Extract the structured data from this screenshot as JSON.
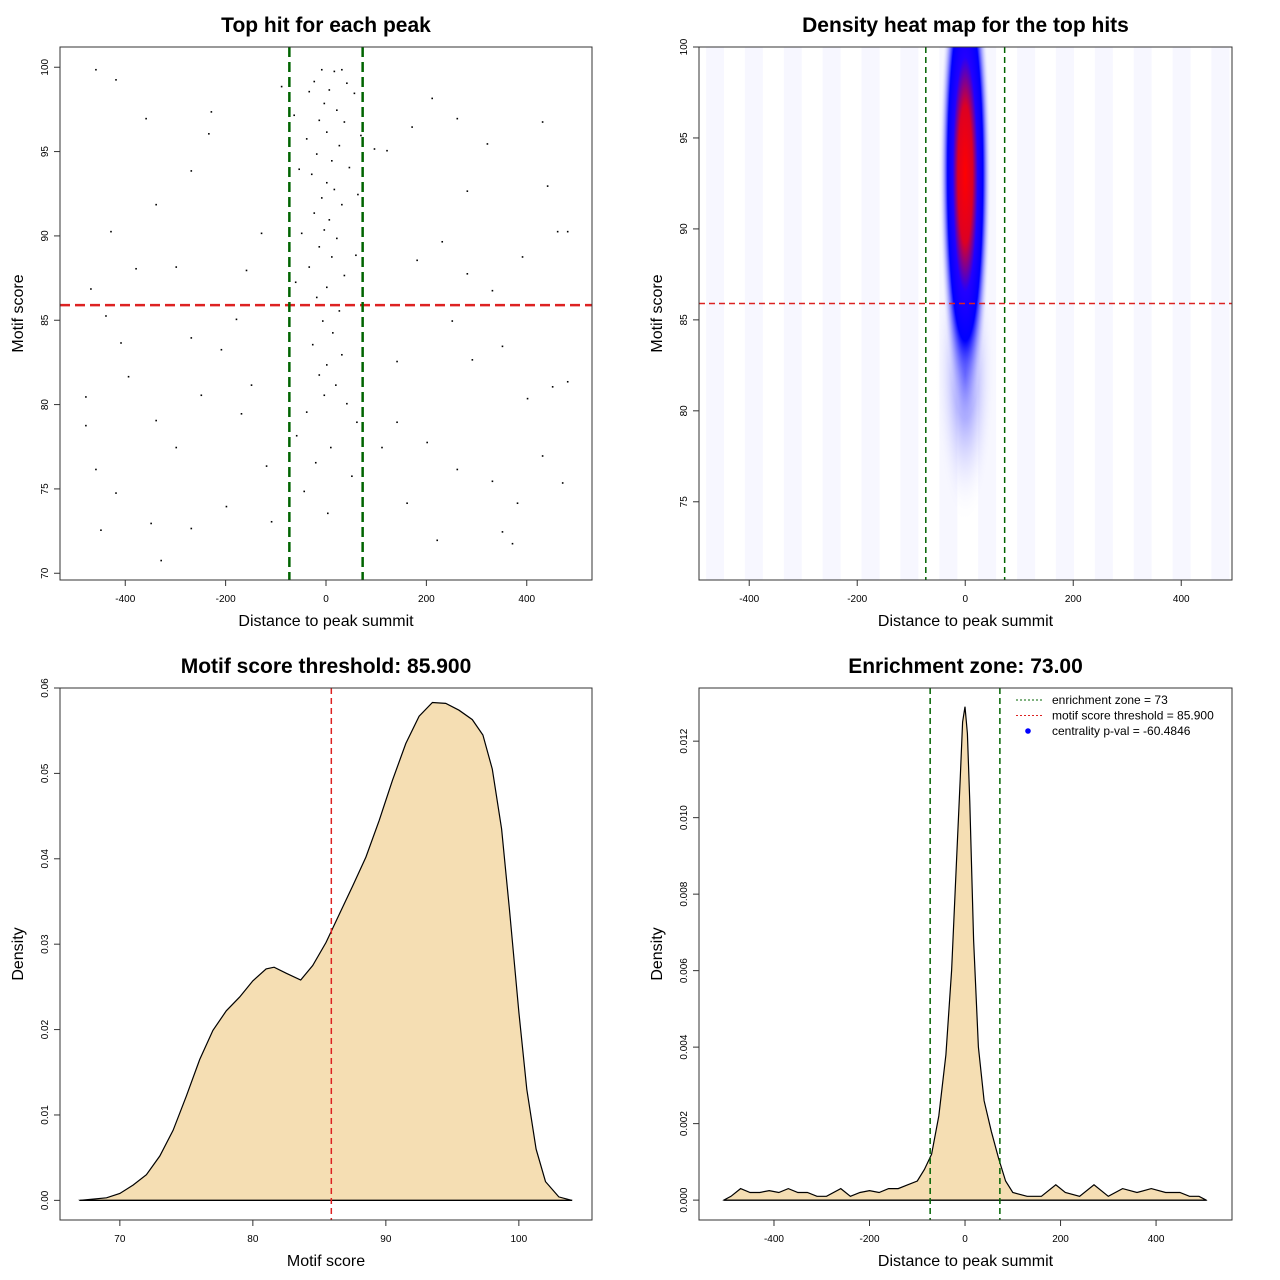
{
  "chart_data": [
    {
      "type": "scatter",
      "title": "Top hit for each peak",
      "xlabel": "Distance to peak summit",
      "ylabel": "Motif score",
      "xlim": [
        -530,
        530
      ],
      "ylim": [
        69.6,
        101.2
      ],
      "xticks": [
        -400,
        -200,
        0,
        200,
        400
      ],
      "yticks": [
        70,
        75,
        80,
        85,
        90,
        95,
        100
      ],
      "hlines": [
        {
          "y": 85.9,
          "color": "#dd2222",
          "label": "motif score threshold"
        }
      ],
      "vlines": [
        {
          "x": -73,
          "color": "#006400"
        },
        {
          "x": 73,
          "color": "#006400"
        }
      ],
      "points": [
        [
          -10,
          99.9
        ],
        [
          15,
          99.8
        ],
        [
          30,
          99.9
        ],
        [
          -25,
          99.2
        ],
        [
          40,
          99.1
        ],
        [
          5,
          98.7
        ],
        [
          -35,
          98.6
        ],
        [
          55,
          98.5
        ],
        [
          -5,
          97.9
        ],
        [
          20,
          97.5
        ],
        [
          -15,
          96.9
        ],
        [
          35,
          96.8
        ],
        [
          0,
          96.2
        ],
        [
          -40,
          95.8
        ],
        [
          25,
          95.4
        ],
        [
          -20,
          94.9
        ],
        [
          10,
          94.5
        ],
        [
          45,
          94.1
        ],
        [
          -30,
          93.7
        ],
        [
          0,
          93.2
        ],
        [
          15,
          92.8
        ],
        [
          -10,
          92.3
        ],
        [
          30,
          91.9
        ],
        [
          -25,
          91.4
        ],
        [
          5,
          91.0
        ],
        [
          -5,
          90.4
        ],
        [
          20,
          89.9
        ],
        [
          -15,
          89.4
        ],
        [
          10,
          88.8
        ],
        [
          -35,
          88.2
        ],
        [
          35,
          87.7
        ],
        [
          0,
          87.0
        ],
        [
          -20,
          86.4
        ],
        [
          25,
          85.6
        ],
        [
          -8,
          85.0
        ],
        [
          12,
          84.3
        ],
        [
          -28,
          83.6
        ],
        [
          30,
          83.0
        ],
        [
          0,
          82.4
        ],
        [
          -15,
          81.8
        ],
        [
          18,
          81.2
        ],
        [
          -5,
          80.6
        ],
        [
          40,
          80.1
        ],
        [
          -40,
          79.6
        ],
        [
          60,
          79.0
        ],
        [
          -60,
          78.2
        ],
        [
          8,
          77.5
        ],
        [
          -22,
          76.6
        ],
        [
          50,
          75.8
        ],
        [
          -45,
          74.9
        ],
        [
          2,
          73.6
        ],
        [
          -65,
          97.2
        ],
        [
          68,
          96.0
        ],
        [
          -55,
          94.0
        ],
        [
          62,
          92.5
        ],
        [
          -50,
          90.2
        ],
        [
          58,
          88.9
        ],
        [
          -62,
          87.3
        ],
        [
          -90,
          98.9
        ],
        [
          95,
          95.2
        ],
        [
          -460,
          99.9
        ],
        [
          -420,
          99.3
        ],
        [
          -360,
          97.0
        ],
        [
          -230,
          97.4
        ],
        [
          -235,
          96.1
        ],
        [
          -270,
          93.9
        ],
        [
          -340,
          91.9
        ],
        [
          -430,
          90.3
        ],
        [
          -380,
          88.1
        ],
        [
          -300,
          88.2
        ],
        [
          -470,
          86.9
        ],
        [
          -440,
          85.3
        ],
        [
          -410,
          83.7
        ],
        [
          -395,
          81.7
        ],
        [
          -480,
          80.5
        ],
        [
          -340,
          79.1
        ],
        [
          -300,
          77.5
        ],
        [
          -460,
          76.2
        ],
        [
          -420,
          74.8
        ],
        [
          -350,
          73.0
        ],
        [
          -330,
          70.8
        ],
        [
          -270,
          72.7
        ],
        [
          -200,
          74.0
        ],
        [
          -170,
          79.5
        ],
        [
          -150,
          81.2
        ],
        [
          -210,
          83.3
        ],
        [
          -180,
          85.1
        ],
        [
          -160,
          88.0
        ],
        [
          -130,
          90.2
        ],
        [
          -120,
          76.4
        ],
        [
          -110,
          73.1
        ],
        [
          -250,
          80.6
        ],
        [
          -270,
          84.0
        ],
        [
          -450,
          72.6
        ],
        [
          -480,
          78.8
        ],
        [
          120,
          95.1
        ],
        [
          170,
          96.5
        ],
        [
          210,
          98.2
        ],
        [
          260,
          97.0
        ],
        [
          320,
          95.5
        ],
        [
          430,
          96.8
        ],
        [
          440,
          93.0
        ],
        [
          280,
          92.7
        ],
        [
          180,
          88.6
        ],
        [
          230,
          89.7
        ],
        [
          280,
          87.8
        ],
        [
          330,
          86.8
        ],
        [
          390,
          88.8
        ],
        [
          460,
          90.3
        ],
        [
          480,
          90.3
        ],
        [
          250,
          85.0
        ],
        [
          290,
          82.7
        ],
        [
          350,
          83.5
        ],
        [
          400,
          80.4
        ],
        [
          450,
          81.1
        ],
        [
          480,
          81.4
        ],
        [
          140,
          79.0
        ],
        [
          200,
          77.8
        ],
        [
          260,
          76.2
        ],
        [
          330,
          75.5
        ],
        [
          380,
          74.2
        ],
        [
          430,
          77.0
        ],
        [
          470,
          75.4
        ],
        [
          350,
          72.5
        ],
        [
          370,
          71.8
        ],
        [
          160,
          74.2
        ],
        [
          220,
          72.0
        ],
        [
          110,
          77.5
        ],
        [
          140,
          82.6
        ]
      ]
    },
    {
      "type": "heatmap",
      "title": "Density heat map for the top hits",
      "xlabel": "Distance to peak summit",
      "ylabel": "Motif score",
      "xlim": [
        -493,
        494
      ],
      "ylim": [
        70.7,
        100
      ],
      "xticks": [
        -400,
        -200,
        0,
        200,
        400
      ],
      "yticks": [
        75,
        80,
        85,
        90,
        95,
        100
      ],
      "hotspot": {
        "x": 0,
        "y": 93,
        "note": "density max centered at x=0, motif score ~93"
      },
      "colors": {
        "low": "#ffffff",
        "mid": "#0000ff",
        "high": "#ff0000"
      },
      "hlines": [
        {
          "y": 85.9,
          "color": "#dd2222"
        }
      ],
      "vlines": [
        {
          "x": -73,
          "color": "#006400"
        },
        {
          "x": 73,
          "color": "#006400"
        }
      ]
    },
    {
      "type": "area",
      "title": "Motif score threshold: 85.900",
      "xlabel": "Motif score",
      "ylabel": "Density",
      "xlim": [
        65.5,
        105.5
      ],
      "ylim": [
        -0.0023,
        0.06
      ],
      "xticks": [
        70,
        80,
        90,
        100
      ],
      "yticks": [
        0.0,
        0.01,
        0.02,
        0.03,
        0.04,
        0.05,
        0.06
      ],
      "ytick_labels": [
        "0.00",
        "0.01",
        "0.02",
        "0.03",
        "0.04",
        "0.05",
        "0.06"
      ],
      "fill": "#f5deb3",
      "x": [
        67,
        69,
        70,
        71,
        72,
        73,
        74,
        75,
        76,
        77,
        78,
        79,
        80,
        81,
        81.6,
        82.5,
        83.6,
        84.5,
        85.5,
        86.5,
        87.5,
        88.5,
        89.5,
        90.5,
        91.5,
        92.5,
        93.5,
        94.5,
        95.5,
        96.5,
        97.3,
        98,
        98.7,
        99.3,
        100,
        100.6,
        101.3,
        102,
        103,
        104
      ],
      "y": [
        0,
        0.0003,
        0.0008,
        0.0018,
        0.003,
        0.0052,
        0.0082,
        0.0122,
        0.0165,
        0.0199,
        0.0222,
        0.0238,
        0.0257,
        0.0271,
        0.0273,
        0.0266,
        0.0258,
        0.0275,
        0.0302,
        0.0335,
        0.0368,
        0.0402,
        0.0445,
        0.0492,
        0.0535,
        0.0567,
        0.0583,
        0.0582,
        0.0574,
        0.0563,
        0.0545,
        0.0505,
        0.0435,
        0.034,
        0.022,
        0.013,
        0.006,
        0.0022,
        0.0004,
        0
      ],
      "vlines": [
        {
          "x": 85.9,
          "color": "#dd2222"
        }
      ]
    },
    {
      "type": "area",
      "title": "Enrichment zone: 73.00",
      "xlabel": "Distance to peak summit",
      "ylabel": "Density",
      "xlim": [
        -557,
        559
      ],
      "ylim": [
        -0.00052,
        0.01339
      ],
      "xticks": [
        -400,
        -200,
        0,
        200,
        400
      ],
      "yticks": [
        0,
        0.002,
        0.004,
        0.006,
        0.008,
        0.01,
        0.012
      ],
      "ytick_labels": [
        "0.000",
        "0.002",
        "0.004",
        "0.006",
        "0.008",
        "0.010",
        "0.012"
      ],
      "fill": "#f5deb3",
      "x": [
        -505,
        -490,
        -470,
        -450,
        -430,
        -410,
        -390,
        -370,
        -350,
        -330,
        -310,
        -290,
        -260,
        -240,
        -220,
        -200,
        -180,
        -160,
        -140,
        -120,
        -100,
        -85,
        -70,
        -55,
        -40,
        -28,
        -18,
        -10,
        -5,
        0,
        5,
        10,
        18,
        28,
        40,
        55,
        70,
        85,
        100,
        130,
        160,
        190,
        210,
        240,
        270,
        300,
        330,
        360,
        390,
        420,
        450,
        470,
        490,
        505
      ],
      "y": [
        0,
        0.0001,
        0.0003,
        0.0002,
        0.0002,
        0.00025,
        0.0002,
        0.0003,
        0.0002,
        0.0002,
        0.0001,
        0.0001,
        0.0003,
        0.0001,
        0.0002,
        0.00025,
        0.0002,
        0.0003,
        0.0003,
        0.0004,
        0.0005,
        0.0008,
        0.0012,
        0.0022,
        0.0038,
        0.006,
        0.0088,
        0.011,
        0.0125,
        0.0129,
        0.0122,
        0.0104,
        0.0068,
        0.004,
        0.0026,
        0.0018,
        0.0011,
        0.0005,
        0.0002,
        0.0001,
        0.0001,
        0.0004,
        0.0002,
        0.0001,
        0.0004,
        0.0001,
        0.0003,
        0.0002,
        0.0003,
        0.0002,
        0.0002,
        0.0001,
        0.0001,
        0
      ],
      "vlines": [
        {
          "x": -73,
          "color": "#006400"
        },
        {
          "x": 73,
          "color": "#006400"
        }
      ],
      "legend": {
        "position": "top-right",
        "entries": [
          {
            "label": "enrichment zone = 73",
            "color": "#006400",
            "style": "dotted-line"
          },
          {
            "label": "motif score threshold = 85.900",
            "color": "#dd2222",
            "style": "dotted-line"
          },
          {
            "label": "centrality p-val = -60.4846",
            "color": "#0000ff",
            "style": "point"
          }
        ]
      }
    }
  ]
}
